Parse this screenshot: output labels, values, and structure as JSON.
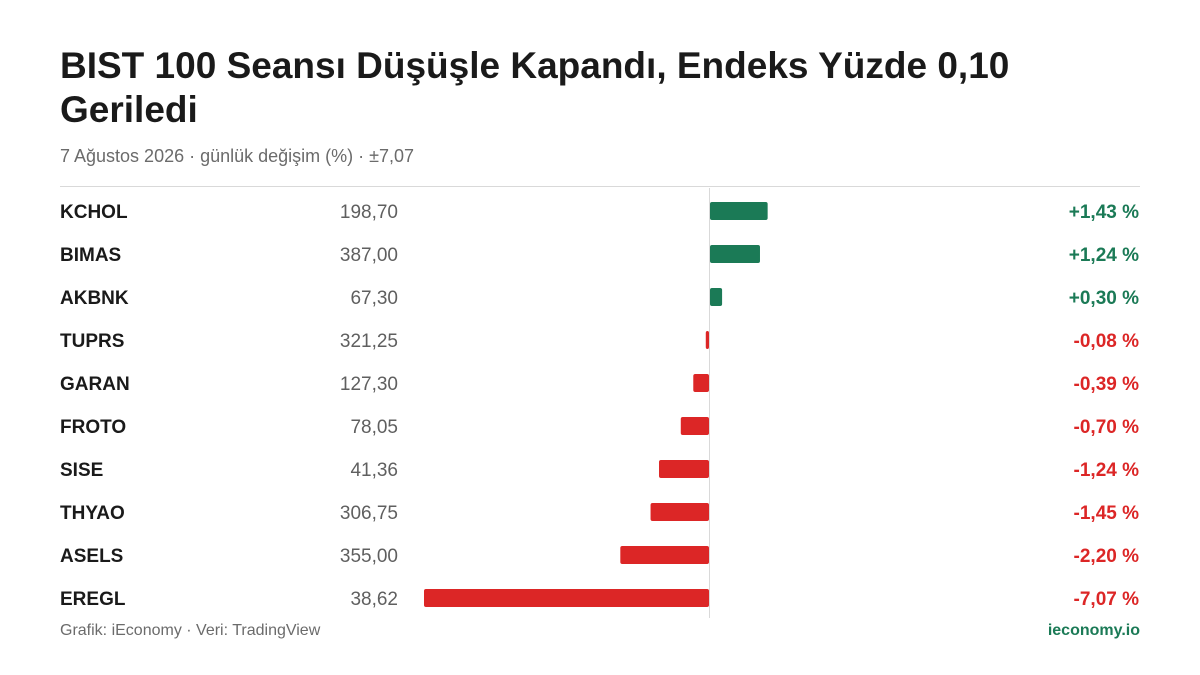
{
  "header": {
    "title": "BIST 100 Seansı Düşüşle Kapandı, Endeks Yüzde 0,10 Geriledi",
    "subtitle": "7 Ağustos 2026 · günlük değişim (%) · ±7,07"
  },
  "footer": {
    "source": "Grafik: iEconomy · Veri: TradingView",
    "brand": "ieconomy.io"
  },
  "colors": {
    "positive": "#1b7a56",
    "negative": "#dc2626",
    "axis": "#d9d9d9"
  },
  "chart_data": {
    "type": "bar",
    "orientation": "horizontal",
    "categories": [
      "KCHOL",
      "BIMAS",
      "AKBNK",
      "TUPRS",
      "GARAN",
      "FROTO",
      "SISE",
      "THYAO",
      "ASELS",
      "EREGL"
    ],
    "prices": [
      "198,70",
      "387,00",
      "67,30",
      "321,25",
      "127,30",
      "78,05",
      "41,36",
      "306,75",
      "355,00",
      "38,62"
    ],
    "values": [
      1.43,
      1.24,
      0.3,
      -0.08,
      -0.39,
      -0.7,
      -1.24,
      -1.45,
      -2.2,
      -7.07
    ],
    "value_labels": [
      "+1,43 %",
      "+1,24 %",
      "+0,30 %",
      "-0,08 %",
      "-0,39 %",
      "-0,70 %",
      "-1,24 %",
      "-1,45 %",
      "-2,20 %",
      "-7,07 %"
    ],
    "xlim": [
      -7.07,
      7.07
    ],
    "title": "BIST 100 Seansı Düşüşle Kapandı, Endeks Yüzde 0,10 Geriledi"
  }
}
